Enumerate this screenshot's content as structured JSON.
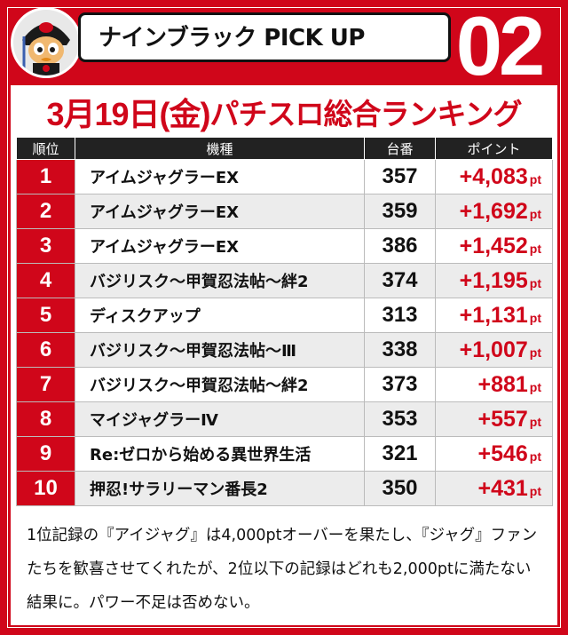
{
  "header": {
    "banner_title": "ナインブラック PICK UP",
    "badge_number": "02"
  },
  "ranking": {
    "date": "3月19日(金)",
    "title": "パチスロ総合ランキング",
    "columns": {
      "rank": "順位",
      "machine": "機種",
      "number": "台番",
      "points": "ポイント"
    },
    "point_unit": "pt",
    "rows": [
      {
        "rank": "1",
        "machine": "アイムジャグラーEX",
        "number": "357",
        "points": "+4,083"
      },
      {
        "rank": "2",
        "machine": "アイムジャグラーEX",
        "number": "359",
        "points": "+1,692"
      },
      {
        "rank": "3",
        "machine": "アイムジャグラーEX",
        "number": "386",
        "points": "+1,452"
      },
      {
        "rank": "4",
        "machine": "バジリスク～甲賀忍法帖～絆2",
        "number": "374",
        "points": "+1,195"
      },
      {
        "rank": "5",
        "machine": "ディスクアップ",
        "number": "313",
        "points": "+1,131"
      },
      {
        "rank": "6",
        "machine": "バジリスク～甲賀忍法帖～Ⅲ",
        "number": "338",
        "points": "+1,007"
      },
      {
        "rank": "7",
        "machine": "バジリスク～甲賀忍法帖～絆2",
        "number": "373",
        "points": "+881"
      },
      {
        "rank": "8",
        "machine": "マイジャグラーⅣ",
        "number": "353",
        "points": "+557"
      },
      {
        "rank": "9",
        "machine": "Re:ゼロから始める異世界生活",
        "number": "321",
        "points": "+546"
      },
      {
        "rank": "10",
        "machine": "押忍!サラリーマン番長2",
        "number": "350",
        "points": "+431"
      }
    ]
  },
  "comment": "1位記録の『アイジャグ』は4,000ptオーバーを果たし、『ジャグ』ファンたちを歓喜させてくれたが、2位以下の記録はどれも2,000ptに満たない結果に。パワー不足は否めない。",
  "colors": {
    "brand_red": "#d0061a",
    "header_dark": "#222222",
    "row_alt": "#ececec"
  }
}
